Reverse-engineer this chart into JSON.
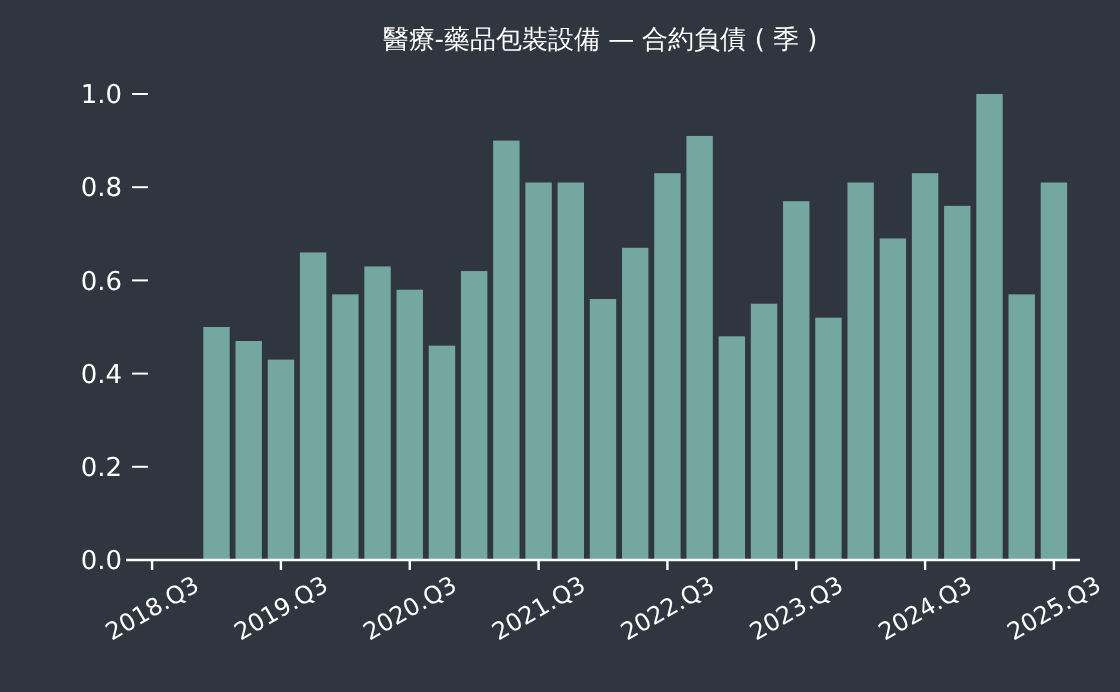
{
  "chart_data": {
    "type": "bar",
    "title": "醫療-藥品包裝設備 — 合約負債 ( 季 )",
    "categories": [
      "2018.Q3",
      null,
      null,
      null,
      "2019.Q3",
      null,
      null,
      null,
      "2020.Q3",
      null,
      null,
      null,
      "2021.Q3",
      null,
      null,
      null,
      "2022.Q3",
      null,
      null,
      null,
      "2023.Q3",
      null,
      null,
      null,
      "2024.Q3",
      null,
      null,
      null,
      "2025.Q3"
    ],
    "values": [
      null,
      null,
      0.5,
      0.47,
      0.43,
      0.66,
      0.57,
      0.63,
      0.58,
      0.46,
      0.62,
      0.9,
      0.81,
      0.81,
      0.56,
      0.67,
      0.83,
      0.91,
      0.48,
      0.55,
      0.77,
      0.52,
      0.81,
      0.69,
      0.83,
      0.76,
      1.0,
      0.57,
      0.81
    ],
    "color": "#73a7a0",
    "ylim": [
      0,
      1
    ],
    "yticks": [
      {
        "value": 0,
        "label": "0.0"
      },
      {
        "value": 0.2,
        "label": "0.2"
      },
      {
        "value": 0.4,
        "label": "0.4"
      },
      {
        "value": 0.6,
        "label": "0.6"
      },
      {
        "value": 0.8,
        "label": "0.8"
      },
      {
        "value": 1,
        "label": "1.0"
      }
    ],
    "grid": false
  }
}
